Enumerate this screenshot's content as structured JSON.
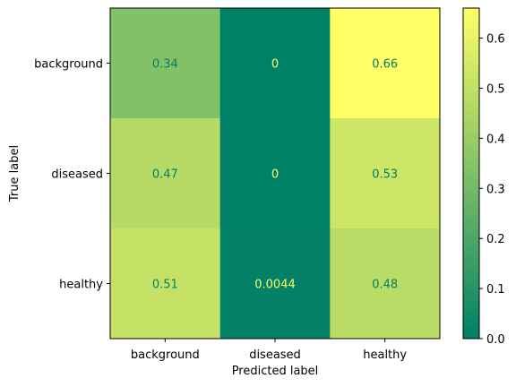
{
  "chart_data": {
    "type": "heatmap",
    "title": "",
    "xlabel": "Predicted label",
    "ylabel": "True label",
    "x_categories": [
      "background",
      "diseased",
      "healthy"
    ],
    "y_categories": [
      "background",
      "diseased",
      "healthy"
    ],
    "values": [
      [
        0.34,
        0,
        0.66
      ],
      [
        0.47,
        0,
        0.53
      ],
      [
        0.51,
        0.0044,
        0.48
      ]
    ],
    "value_labels": [
      [
        "0.34",
        "0",
        "0.66"
      ],
      [
        "0.47",
        "0",
        "0.53"
      ],
      [
        "0.51",
        "0.0044",
        "0.48"
      ]
    ],
    "colormap": "summer",
    "colormap_start": "#008066",
    "colormap_end": "#ffff66",
    "colorbar": {
      "min": 0.0,
      "max": 0.66,
      "ticks": [
        0.0,
        0.1,
        0.2,
        0.3,
        0.4,
        0.5,
        0.6
      ],
      "tick_labels": [
        "0.0",
        "0.1",
        "0.2",
        "0.3",
        "0.4",
        "0.5",
        "0.6"
      ]
    }
  }
}
